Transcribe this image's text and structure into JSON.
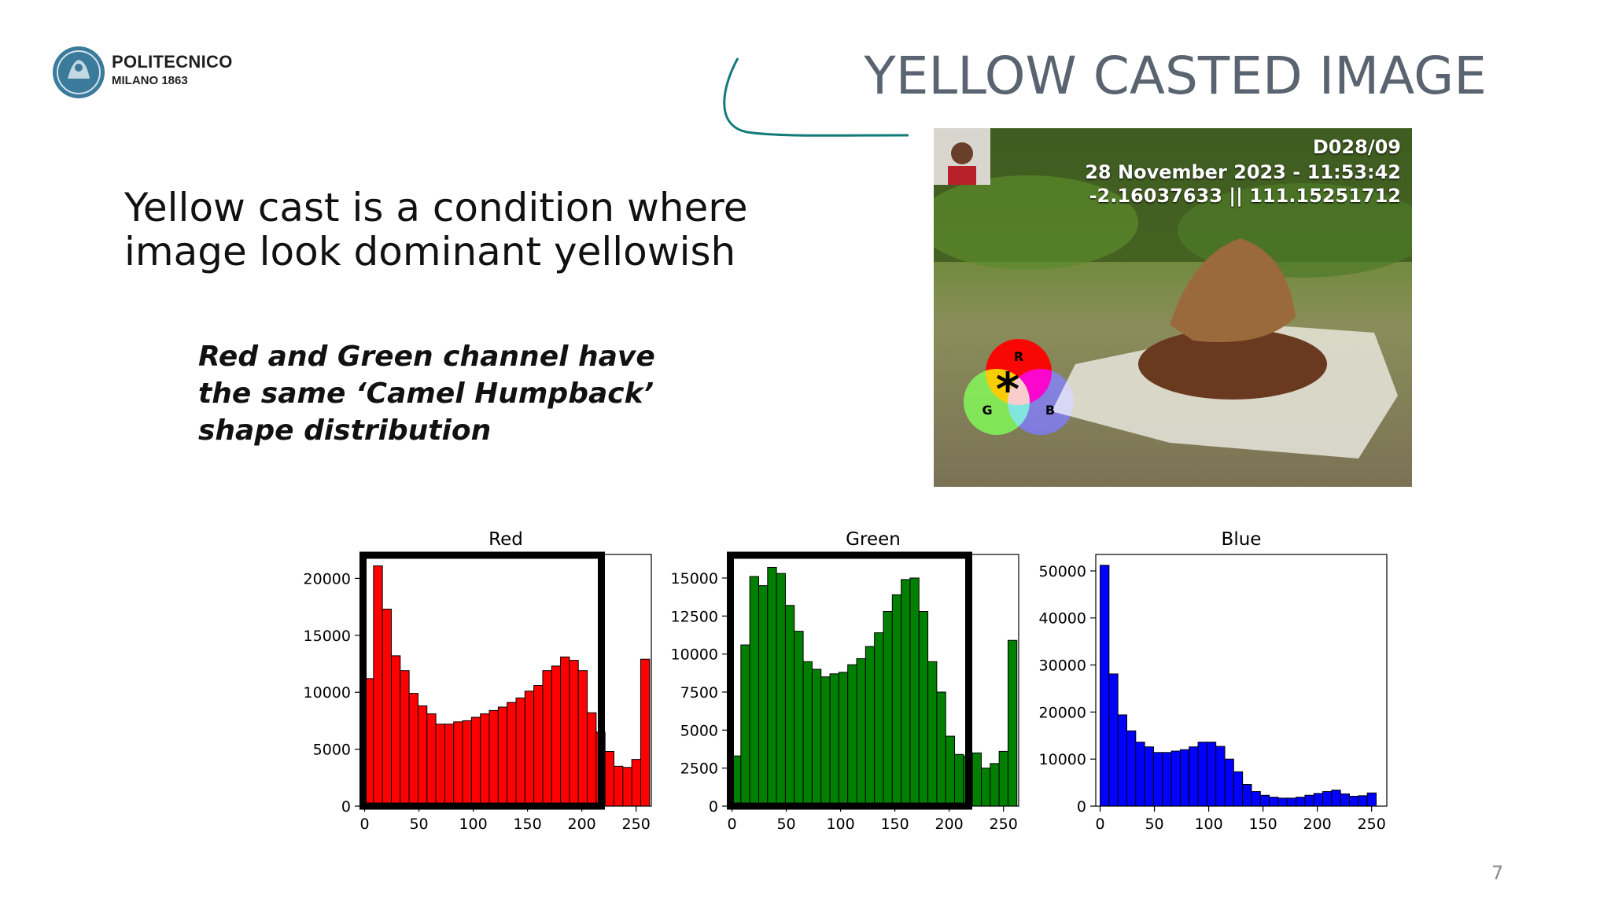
{
  "logo": {
    "line1": "POLITECNICO",
    "line2": "MILANO 1863"
  },
  "slide": {
    "title": "YELLOW CASTED IMAGE",
    "intro": "Yellow cast is a condition where image look dominant yellowish",
    "note": "Red and Green channel have the same ‘Camel Humpback’ shape distribution",
    "page_number": "7"
  },
  "photo": {
    "overlay_id": "D028/09",
    "overlay_date": "28 November 2023 - 11:53:42",
    "overlay_coords": "-2.16037633 || 111.15251712",
    "venn_labels": [
      "R",
      "G",
      "B"
    ]
  },
  "colors": {
    "title": "#5a6470",
    "accent_curve": "#137a7a",
    "red": "#ff0000",
    "green": "#008000",
    "blue": "#0000ff"
  },
  "chart_data": [
    {
      "type": "bar",
      "title": "Red",
      "x_ticks": [
        0,
        50,
        100,
        150,
        200,
        250
      ],
      "y_ticks": [
        0,
        5000,
        10000,
        15000,
        20000
      ],
      "xlim": [
        -4,
        264
      ],
      "ylim": [
        0,
        22100
      ],
      "bin_width": 8.2,
      "values": [
        11200,
        21100,
        17300,
        13200,
        11900,
        9900,
        8800,
        8100,
        7200,
        7200,
        7400,
        7500,
        7800,
        8100,
        8400,
        8700,
        9100,
        9500,
        10100,
        10600,
        11900,
        12300,
        13100,
        12800,
        11900,
        8200,
        6500,
        4800,
        3500,
        3400,
        4100,
        12900
      ],
      "color": "#ff0000",
      "highlight_range": [
        0,
        218
      ]
    },
    {
      "type": "bar",
      "title": "Green",
      "x_ticks": [
        0,
        50,
        100,
        150,
        200,
        250
      ],
      "y_ticks": [
        0,
        2500,
        5000,
        7500,
        10000,
        12500,
        15000
      ],
      "xlim": [
        -4,
        264
      ],
      "ylim": [
        0,
        16550
      ],
      "bin_width": 8.2,
      "values": [
        3300,
        10600,
        15100,
        14500,
        15700,
        15300,
        13200,
        11500,
        9500,
        9000,
        8500,
        8700,
        8800,
        9300,
        9700,
        10500,
        11400,
        12800,
        13900,
        14900,
        15000,
        12800,
        9500,
        7500,
        4600,
        3400,
        3300,
        3500,
        2500,
        2800,
        3600,
        10900
      ],
      "color": "#008000",
      "highlight_range": [
        0,
        218
      ]
    },
    {
      "type": "bar",
      "title": "Blue",
      "x_ticks": [
        0,
        50,
        100,
        150,
        200,
        250
      ],
      "y_ticks": [
        0,
        10000,
        20000,
        30000,
        40000,
        50000
      ],
      "xlim": [
        -4,
        264
      ],
      "ylim": [
        0,
        53500
      ],
      "bin_width": 8.2,
      "values": [
        51200,
        28100,
        19400,
        16000,
        13600,
        12600,
        11400,
        11400,
        11700,
        12000,
        12600,
        13600,
        13600,
        12700,
        10000,
        7300,
        4600,
        3100,
        2300,
        1900,
        1700,
        1700,
        1900,
        2300,
        2700,
        3100,
        3400,
        2600,
        2100,
        2200,
        2800,
        0
      ],
      "color": "#0000ff",
      "highlight_range": null
    }
  ]
}
